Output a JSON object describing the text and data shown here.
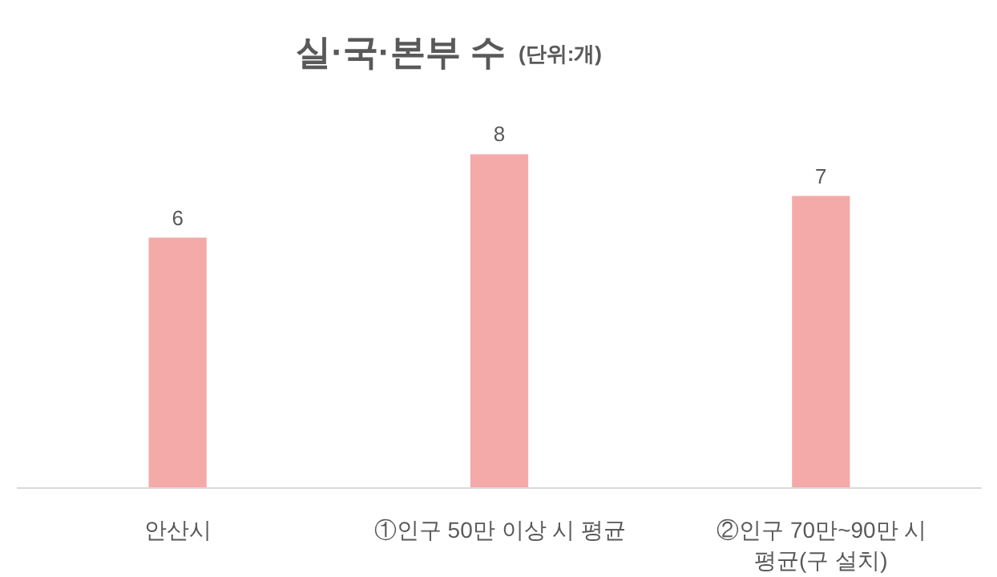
{
  "chart_data": {
    "type": "bar",
    "title": "실·국·본부 수",
    "subtitle": "(단위:개)",
    "categories": [
      "안산시",
      "①인구 50만 이상 시 평균",
      "②인구 70만~90만 시 평균(구 설치)"
    ],
    "values": [
      6,
      8,
      7
    ],
    "color": "#f4aaa9",
    "data_labels": true,
    "grid": false
  }
}
